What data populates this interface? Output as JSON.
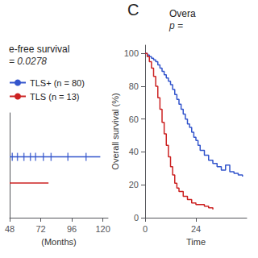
{
  "chart_data": [
    {
      "type": "line",
      "title": "e-free survival",
      "subtitle": "= 0.0278",
      "xlabel": "(Months)",
      "xlim": [
        48,
        124
      ],
      "xticks": [
        48,
        72,
        96,
        120
      ],
      "ylim": [
        0,
        1
      ],
      "tick_labels": "x",
      "grid": false,
      "legend": "upper left",
      "series": [
        {
          "name": "TLS+ (n = 80)",
          "color": "#3355cc",
          "x": [
            48,
            118
          ],
          "values": [
            0.58,
            0.58
          ],
          "censor_x": [
            50,
            54,
            59,
            64,
            68,
            74,
            80,
            93,
            107
          ]
        },
        {
          "name": "TLS (n = 13)",
          "color": "#cc2222",
          "x": [
            48,
            78
          ],
          "values": [
            0.33,
            0.33
          ]
        }
      ]
    },
    {
      "type": "step",
      "title": "Overa",
      "subtitle": "p =",
      "annotations": [
        "C"
      ],
      "xlabel": "Time",
      "ylabel": "Overall survival (%)",
      "xlim": [
        0,
        48
      ],
      "xticks": [
        0,
        24
      ],
      "ylim": [
        0,
        105
      ],
      "yticks": [
        0,
        20,
        40,
        60,
        80,
        100
      ],
      "grid": false,
      "series": [
        {
          "color": "#3355cc",
          "x": [
            0,
            1,
            2,
            3,
            4,
            5,
            6,
            7,
            8,
            9,
            10,
            11,
            12,
            13,
            14,
            15,
            16,
            17,
            18,
            19,
            20,
            21,
            22,
            23,
            24,
            25,
            26,
            28,
            30,
            32,
            34,
            36,
            38,
            40,
            42,
            44,
            46
          ],
          "values": [
            100,
            99,
            98,
            97,
            96,
            95,
            93,
            91,
            89,
            87,
            85,
            83,
            81,
            78,
            75,
            72,
            69,
            66,
            63,
            60,
            57,
            55,
            52,
            49,
            47,
            44,
            41,
            38,
            35,
            33,
            31,
            29,
            32,
            28,
            27,
            26,
            25
          ]
        },
        {
          "color": "#cc2222",
          "x": [
            0,
            1,
            2,
            3,
            4,
            5,
            6,
            7,
            8,
            9,
            10,
            11,
            12,
            13,
            14,
            15,
            16,
            18,
            20,
            22,
            24,
            26,
            28,
            30,
            32
          ],
          "values": [
            100,
            98,
            95,
            91,
            86,
            80,
            73,
            66,
            58,
            51,
            44,
            37,
            31,
            26,
            21,
            18,
            16,
            13,
            11,
            9,
            8,
            8,
            7,
            6,
            5
          ]
        }
      ]
    }
  ]
}
